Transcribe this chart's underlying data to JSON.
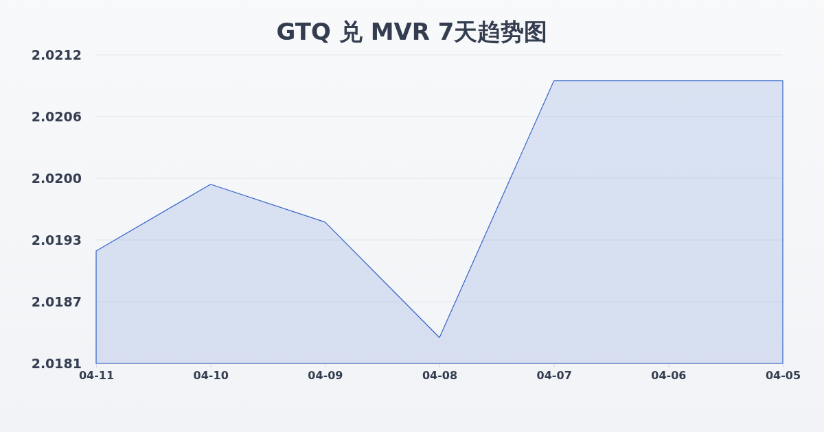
{
  "chart_data": {
    "type": "area",
    "title": "GTQ 兑 MVR 7天趋势图",
    "categories": [
      "04-11",
      "04-10",
      "04-09",
      "04-08",
      "04-07",
      "04-06",
      "04-05"
    ],
    "values": [
      2.01923,
      2.0199,
      2.01952,
      2.01836,
      2.02094,
      2.02094,
      2.02094
    ],
    "color": "#3563c9",
    "ylim": [
      2.0181,
      2.0212
    ],
    "yticks": [
      {
        "value": 2.0181,
        "label": "2.0181"
      },
      {
        "value": 2.01872,
        "label": "2.0187"
      },
      {
        "value": 2.01934,
        "label": "2.0193"
      },
      {
        "value": 2.01996,
        "label": "2.0200"
      },
      {
        "value": 2.02058,
        "label": "2.0206"
      },
      {
        "value": 2.0212,
        "label": "2.0212"
      }
    ],
    "grid": "y"
  }
}
